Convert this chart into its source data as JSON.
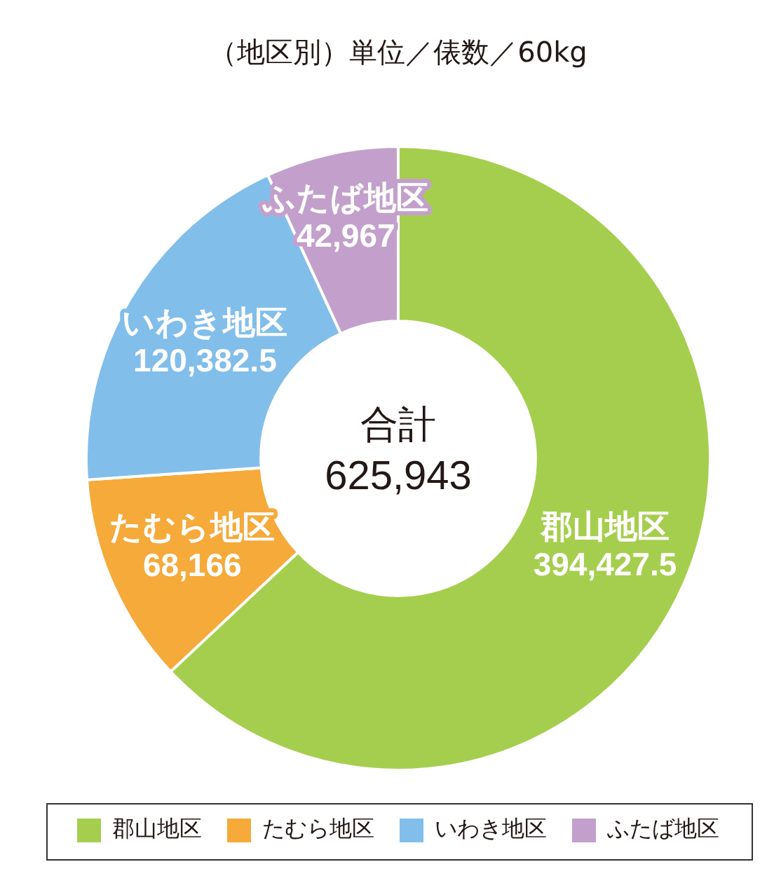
{
  "chart_data": {
    "type": "donut",
    "title": "（地区別）単位／俵数／60kg",
    "categories": [
      "郡山地区",
      "たむら地区",
      "いわき地区",
      "ふたば地区"
    ],
    "values": [
      394427.5,
      68166,
      120382.5,
      42967
    ],
    "value_labels": [
      "394,427.5",
      "68,166",
      "120,382.5",
      "42,967"
    ],
    "colors": [
      "#a6ce4e",
      "#f5aa3a",
      "#82beea",
      "#c3a0cb"
    ],
    "legend": "bottom",
    "annotations": [
      "合計",
      "625,943"
    ]
  }
}
